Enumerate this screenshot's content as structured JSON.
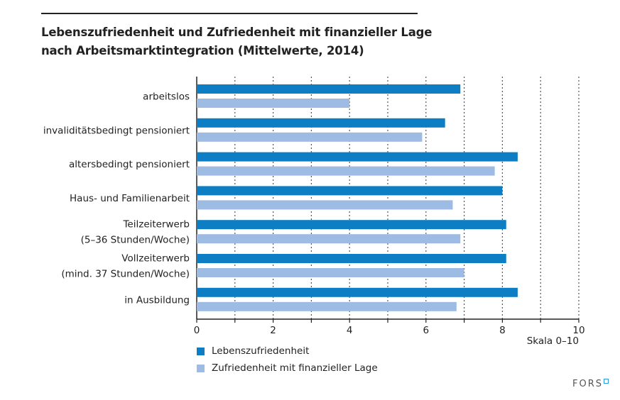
{
  "chart_data": {
    "type": "bar",
    "orientation": "horizontal",
    "title": "Lebenszufriedenheit und Zufriedenheit mit finanzieller Lage nach Arbeitsmarktintegration (Mittelwerte, 2014)",
    "title_lines": [
      "Lebenszufriedenheit und Zufriedenheit mit finanzieller Lage",
      "nach Arbeitsmarktintegration (Mittelwerte, 2014)"
    ],
    "categories": [
      [
        "arbeitslos"
      ],
      [
        "invaliditätsbedingt pensioniert"
      ],
      [
        "altersbedingt pensioniert"
      ],
      [
        "Haus- und Familienarbeit"
      ],
      [
        "Teilzeiterwerb",
        "(5–36 Stunden/Woche)"
      ],
      [
        "Vollzeiterwerb",
        "(mind. 37 Stunden/Woche)"
      ],
      [
        "in Ausbildung"
      ]
    ],
    "series": [
      {
        "name": "Lebenszufriedenheit",
        "color": "#0d7ec4",
        "values": [
          6.9,
          6.5,
          8.4,
          8.0,
          8.1,
          8.1,
          8.4
        ]
      },
      {
        "name": "Zufriedenheit mit finanzieller Lage",
        "color": "#9dbbe3",
        "values": [
          4.0,
          5.9,
          7.8,
          6.7,
          6.9,
          7.0,
          6.8
        ]
      }
    ],
    "xlim": [
      0,
      10
    ],
    "xticks": [
      0,
      2,
      4,
      6,
      8,
      10
    ],
    "xlabel": "Skala 0–10",
    "grid": "vertical dashed",
    "legend": "bottom-left"
  },
  "logo": "FORS"
}
